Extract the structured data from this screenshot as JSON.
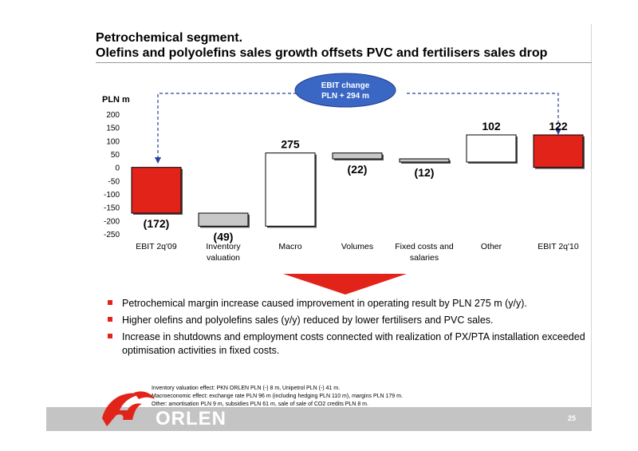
{
  "header": {
    "title_line1": "Petrochemical segment.",
    "title_line2": "Olefins and polyolefins sales growth offsets PVC and fertilisers sales drop"
  },
  "callout": {
    "line1": "EBIT change",
    "line2": "PLN + 294 m"
  },
  "colors": {
    "red": "#e2231a",
    "blue_oval": "#3a66c4",
    "gray_bar": "#c8c8c8"
  },
  "chart_data": {
    "type": "waterfall",
    "ylabel": "PLN m",
    "ylim": [
      -250,
      200
    ],
    "yticks": [
      200,
      150,
      100,
      50,
      0,
      -50,
      -100,
      -150,
      -200,
      -250
    ],
    "bars": [
      {
        "category_lines": [
          "EBIT 2q'09"
        ],
        "value": -172,
        "label": "(172)",
        "kind": "total",
        "color": "#e2231a"
      },
      {
        "category_lines": [
          "Inventory",
          "valuation"
        ],
        "value": -49,
        "label": "(49)",
        "kind": "change",
        "color": "#c8c8c8"
      },
      {
        "category_lines": [
          "Macro"
        ],
        "value": 275,
        "label": "275",
        "kind": "change",
        "color": "#ffffff"
      },
      {
        "category_lines": [
          "Volumes"
        ],
        "value": -22,
        "label": "(22)",
        "kind": "change",
        "color": "#c8c8c8"
      },
      {
        "category_lines": [
          "Fixed costs and",
          "salaries"
        ],
        "value": -12,
        "label": "(12)",
        "kind": "change",
        "color": "#c8c8c8"
      },
      {
        "category_lines": [
          "Other"
        ],
        "value": 102,
        "label": "102",
        "kind": "change",
        "color": "#ffffff"
      },
      {
        "category_lines": [
          "EBIT 2q'10"
        ],
        "value": 122,
        "label": "122",
        "kind": "total",
        "color": "#e2231a"
      }
    ]
  },
  "bullets": [
    "Petrochemical margin increase caused improvement in operating result by PLN 275 m (y/y).",
    "Higher olefins and polyolefins sales (y/y) reduced by lower fertilisers and PVC sales.",
    "Increase in shutdowns and employment costs connected with realization of PX/PTA installation exceeded optimisation activities in fixed costs."
  ],
  "footnotes": [
    "Inventory valuation effect: PKN ORLEN PLN (-) 8 m, Unipetrol PLN (-) 41 m.",
    "Macroeconomic effect: exchange rate PLN 96 m (including hedging PLN 110 m), margins PLN 179 m.",
    "Other: amortisation PLN 9 m, subsidies PLN 61 m, sale of sale of CO2 credits PLN 8 m."
  ],
  "footer": {
    "logo": "ORLEN",
    "page_number": "25"
  }
}
